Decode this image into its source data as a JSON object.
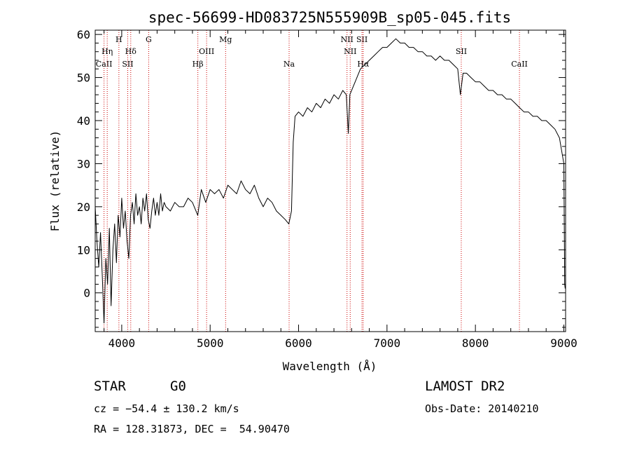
{
  "chart_data": {
    "type": "line",
    "title": "spec-56699-HD083725N555909B_sp05-045.fits",
    "xlabel": "Wavelength (Å)",
    "ylabel": "Flux (relative)",
    "xlim": [
      3700,
      9020
    ],
    "ylim": [
      -9,
      61
    ],
    "xticks": [
      4000,
      5000,
      6000,
      7000,
      8000,
      9000
    ],
    "yticks": [
      0,
      10,
      20,
      30,
      40,
      50,
      60
    ],
    "grid": false,
    "series": [
      {
        "points": [
          [
            3700,
            20
          ],
          [
            3720,
            12
          ],
          [
            3740,
            6
          ],
          [
            3760,
            14
          ],
          [
            3780,
            4
          ],
          [
            3800,
            -7
          ],
          [
            3820,
            8
          ],
          [
            3840,
            2
          ],
          [
            3860,
            15
          ],
          [
            3880,
            -3
          ],
          [
            3900,
            10
          ],
          [
            3920,
            16
          ],
          [
            3940,
            7
          ],
          [
            3960,
            18
          ],
          [
            3980,
            13
          ],
          [
            4000,
            22
          ],
          [
            4020,
            15
          ],
          [
            4040,
            19
          ],
          [
            4060,
            12
          ],
          [
            4080,
            8
          ],
          [
            4100,
            18
          ],
          [
            4120,
            21
          ],
          [
            4140,
            16
          ],
          [
            4160,
            23
          ],
          [
            4180,
            18
          ],
          [
            4200,
            20
          ],
          [
            4220,
            16
          ],
          [
            4240,
            22
          ],
          [
            4260,
            19
          ],
          [
            4280,
            23
          ],
          [
            4300,
            17
          ],
          [
            4320,
            15
          ],
          [
            4340,
            19
          ],
          [
            4360,
            22
          ],
          [
            4380,
            18
          ],
          [
            4400,
            21
          ],
          [
            4420,
            18
          ],
          [
            4440,
            23
          ],
          [
            4460,
            19
          ],
          [
            4480,
            21
          ],
          [
            4500,
            20
          ],
          [
            4550,
            19
          ],
          [
            4600,
            21
          ],
          [
            4650,
            20
          ],
          [
            4700,
            20
          ],
          [
            4750,
            22
          ],
          [
            4800,
            21
          ],
          [
            4860,
            18
          ],
          [
            4900,
            24
          ],
          [
            4950,
            21
          ],
          [
            5000,
            24
          ],
          [
            5050,
            23
          ],
          [
            5100,
            24
          ],
          [
            5150,
            22
          ],
          [
            5200,
            25
          ],
          [
            5250,
            24
          ],
          [
            5300,
            23
          ],
          [
            5350,
            26
          ],
          [
            5400,
            24
          ],
          [
            5450,
            23
          ],
          [
            5500,
            25
          ],
          [
            5550,
            22
          ],
          [
            5600,
            20
          ],
          [
            5650,
            22
          ],
          [
            5700,
            21
          ],
          [
            5750,
            19
          ],
          [
            5800,
            18
          ],
          [
            5850,
            17
          ],
          [
            5890,
            16
          ],
          [
            5920,
            19
          ],
          [
            5940,
            35
          ],
          [
            5960,
            41
          ],
          [
            6000,
            42
          ],
          [
            6050,
            41
          ],
          [
            6100,
            43
          ],
          [
            6150,
            42
          ],
          [
            6200,
            44
          ],
          [
            6250,
            43
          ],
          [
            6300,
            45
          ],
          [
            6350,
            44
          ],
          [
            6400,
            46
          ],
          [
            6450,
            45
          ],
          [
            6500,
            47
          ],
          [
            6540,
            46
          ],
          [
            6563,
            37
          ],
          [
            6580,
            46
          ],
          [
            6620,
            48
          ],
          [
            6660,
            50
          ],
          [
            6700,
            52
          ],
          [
            6750,
            53
          ],
          [
            6800,
            54
          ],
          [
            6850,
            55
          ],
          [
            6900,
            56
          ],
          [
            6950,
            57
          ],
          [
            7000,
            57
          ],
          [
            7050,
            58
          ],
          [
            7100,
            59
          ],
          [
            7150,
            58
          ],
          [
            7200,
            58
          ],
          [
            7250,
            57
          ],
          [
            7300,
            57
          ],
          [
            7350,
            56
          ],
          [
            7400,
            56
          ],
          [
            7450,
            55
          ],
          [
            7500,
            55
          ],
          [
            7550,
            54
          ],
          [
            7600,
            55
          ],
          [
            7650,
            54
          ],
          [
            7700,
            54
          ],
          [
            7750,
            53
          ],
          [
            7800,
            52
          ],
          [
            7830,
            46
          ],
          [
            7860,
            51
          ],
          [
            7900,
            51
          ],
          [
            7950,
            50
          ],
          [
            8000,
            49
          ],
          [
            8050,
            49
          ],
          [
            8100,
            48
          ],
          [
            8150,
            47
          ],
          [
            8200,
            47
          ],
          [
            8250,
            46
          ],
          [
            8300,
            46
          ],
          [
            8350,
            45
          ],
          [
            8400,
            45
          ],
          [
            8450,
            44
          ],
          [
            8500,
            43
          ],
          [
            8550,
            42
          ],
          [
            8600,
            42
          ],
          [
            8650,
            41
          ],
          [
            8700,
            41
          ],
          [
            8750,
            40
          ],
          [
            8800,
            40
          ],
          [
            8850,
            39
          ],
          [
            8900,
            38
          ],
          [
            8950,
            36
          ],
          [
            9000,
            30
          ],
          [
            9010,
            2
          ],
          [
            9015,
            1
          ]
        ]
      }
    ],
    "line_markers": [
      {
        "name": "CaII",
        "wavelength": 3800,
        "row": 3
      },
      {
        "name": "Hη",
        "wavelength": 3836,
        "row": 1
      },
      {
        "name": "H",
        "wavelength": 3968,
        "row": 0
      },
      {
        "name": "SII",
        "wavelength": 4068,
        "row": 3
      },
      {
        "name": "Hδ",
        "wavelength": 4102,
        "row": 1
      },
      {
        "name": "G",
        "wavelength": 4305,
        "row": 0
      },
      {
        "name": "Hβ",
        "wavelength": 4861,
        "row": 3
      },
      {
        "name": "OIII",
        "wavelength": 4960,
        "row": 1
      },
      {
        "name": "Mg",
        "wavelength": 5175,
        "row": 0
      },
      {
        "name": "Na",
        "wavelength": 5893,
        "row": 3
      },
      {
        "name": "NII",
        "wavelength": 6548,
        "row": 0
      },
      {
        "name": "NII",
        "wavelength": 6584,
        "row": 1
      },
      {
        "name": "SII",
        "wavelength": 6717,
        "row": 0
      },
      {
        "name": "Hα",
        "wavelength": 6731,
        "row": 3
      },
      {
        "name": "SII",
        "wavelength": 7840,
        "row": 1
      },
      {
        "name": "CaII",
        "wavelength": 8498,
        "row": 3
      }
    ],
    "marker_color": "#cc0000"
  },
  "info": {
    "class": "STAR",
    "subclass": "G0",
    "survey": "LAMOST DR2",
    "cz": "cz = −54.4 ± 130.2 km/s",
    "obs_date": "Obs-Date: 20140210",
    "coords": "RA = 128.31873, DEC =  54.90470"
  }
}
